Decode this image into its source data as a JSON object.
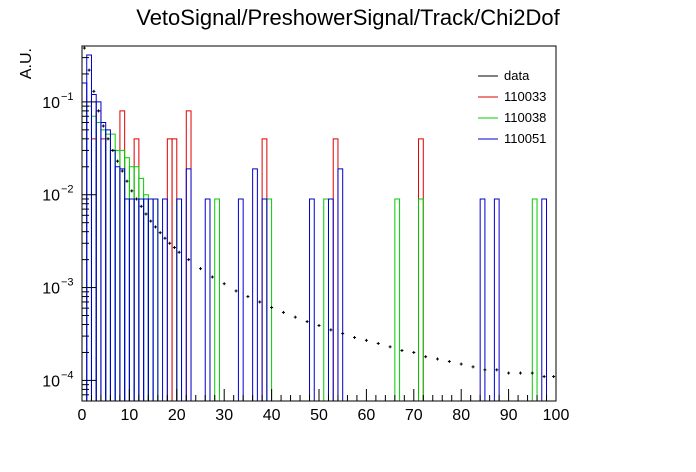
{
  "chart_data": {
    "type": "histogram",
    "title": "VetoSignal/PreshowerSignal/Track/Chi2Dof",
    "xlabel": "",
    "ylabel": "A.U.",
    "xlim": [
      0,
      100
    ],
    "ylim": [
      6e-05,
      0.4
    ],
    "y_scale": "log",
    "x_ticks": [
      "0",
      "10",
      "20",
      "30",
      "40",
      "50",
      "60",
      "70",
      "80",
      "90",
      "100"
    ],
    "y_ticks": [
      {
        "value": 0.0001,
        "label": "10",
        "exp": "−4"
      },
      {
        "value": 0.001,
        "label": "10",
        "exp": "−3"
      },
      {
        "value": 0.01,
        "label": "10",
        "exp": "−2"
      },
      {
        "value": 0.1,
        "label": "10",
        "exp": "−1"
      }
    ],
    "grid": false,
    "legend_position": "top-right",
    "bin_width": 1,
    "series": [
      {
        "name": "data",
        "color": "#000000",
        "style": "points",
        "description_decay": true,
        "x": [
          0.5,
          1.5,
          2.5,
          3.5,
          4.5,
          5.5,
          6.5,
          7.5,
          8.5,
          9.5,
          10.5,
          11.5,
          12.5,
          13.5,
          14.5,
          15.5,
          16.5,
          17.5,
          18.5,
          19.5,
          20.5,
          22.5,
          25,
          27.5,
          30,
          32.5,
          35,
          37.5,
          40,
          42.5,
          45,
          47.5,
          50,
          52.5,
          55,
          57.5,
          60,
          62.5,
          65,
          67.5,
          70,
          72.5,
          75,
          77.5,
          80,
          82.5,
          85,
          87.5,
          90,
          92.5,
          95,
          97.5,
          99.5
        ],
        "y": [
          0.38,
          0.22,
          0.13,
          0.08,
          0.055,
          0.04,
          0.03,
          0.023,
          0.018,
          0.014,
          0.011,
          0.009,
          0.0075,
          0.0062,
          0.0052,
          0.0045,
          0.0039,
          0.0034,
          0.003,
          0.0027,
          0.0024,
          0.002,
          0.0016,
          0.0013,
          0.0011,
          0.00092,
          0.0008,
          0.0007,
          0.00061,
          0.00054,
          0.00048,
          0.00043,
          0.00039,
          0.00035,
          0.00032,
          0.00029,
          0.00027,
          0.00025,
          0.00023,
          0.00021,
          0.0002,
          0.00018,
          0.00017,
          0.00016,
          0.00015,
          0.00014,
          0.00013,
          0.00013,
          0.00012,
          0.00012,
          0.00012,
          0.00011,
          0.00011
        ]
      },
      {
        "name": "110033",
        "color": "#dd0000",
        "style": "step",
        "bins": [
          {
            "x": 2,
            "y": 0.04
          },
          {
            "x": 3,
            "y": 0.08
          },
          {
            "x": 4,
            "y": 0.04
          },
          {
            "x": 8,
            "y": 0.08
          },
          {
            "x": 11,
            "y": 0.04
          },
          {
            "x": 18,
            "y": 0.04
          },
          {
            "x": 19,
            "y": 0.04
          },
          {
            "x": 22,
            "y": 0.08
          },
          {
            "x": 38,
            "y": 0.04
          },
          {
            "x": 53,
            "y": 0.04
          },
          {
            "x": 71,
            "y": 0.04
          }
        ]
      },
      {
        "name": "110038",
        "color": "#00cc00",
        "style": "step",
        "bins": [
          {
            "x": 1,
            "y": 0.09
          },
          {
            "x": 2,
            "y": 0.07
          },
          {
            "x": 3,
            "y": 0.06
          },
          {
            "x": 4,
            "y": 0.05
          },
          {
            "x": 5,
            "y": 0.045
          },
          {
            "x": 6,
            "y": 0.045
          },
          {
            "x": 7,
            "y": 0.03
          },
          {
            "x": 8,
            "y": 0.03
          },
          {
            "x": 9,
            "y": 0.025
          },
          {
            "x": 10,
            "y": 0.02
          },
          {
            "x": 11,
            "y": 0.02
          },
          {
            "x": 12,
            "y": 0.015
          },
          {
            "x": 13,
            "y": 0.01
          },
          {
            "x": 14,
            "y": 0.009
          },
          {
            "x": 15,
            "y": 0.009
          },
          {
            "x": 20,
            "y": 0.009
          },
          {
            "x": 28,
            "y": 0.009
          },
          {
            "x": 39,
            "y": 0.009
          },
          {
            "x": 51,
            "y": 0.009
          },
          {
            "x": 66,
            "y": 0.009
          },
          {
            "x": 71,
            "y": 0.009
          },
          {
            "x": 95,
            "y": 0.009
          }
        ]
      },
      {
        "name": "110051",
        "color": "#0000cc",
        "style": "step",
        "bins": [
          {
            "x": 0,
            "y": 0.16
          },
          {
            "x": 1,
            "y": 0.32
          },
          {
            "x": 2,
            "y": 0.12
          },
          {
            "x": 3,
            "y": 0.1
          },
          {
            "x": 4,
            "y": 0.06
          },
          {
            "x": 5,
            "y": 0.05
          },
          {
            "x": 6,
            "y": 0.03
          },
          {
            "x": 7,
            "y": 0.02
          },
          {
            "x": 8,
            "y": 0.019
          },
          {
            "x": 9,
            "y": 0.009
          },
          {
            "x": 10,
            "y": 0.009
          },
          {
            "x": 11,
            "y": 0.009
          },
          {
            "x": 12,
            "y": 0.009
          },
          {
            "x": 13,
            "y": 0.009
          },
          {
            "x": 14,
            "y": 0.009
          },
          {
            "x": 15,
            "y": 0.009
          },
          {
            "x": 17,
            "y": 0.009
          },
          {
            "x": 20,
            "y": 0.009
          },
          {
            "x": 22,
            "y": 0.019
          },
          {
            "x": 26,
            "y": 0.009
          },
          {
            "x": 33,
            "y": 0.009
          },
          {
            "x": 36,
            "y": 0.019
          },
          {
            "x": 38,
            "y": 0.009
          },
          {
            "x": 48,
            "y": 0.009
          },
          {
            "x": 52,
            "y": 0.009
          },
          {
            "x": 54,
            "y": 0.019
          },
          {
            "x": 84,
            "y": 0.009
          },
          {
            "x": 87,
            "y": 0.009
          },
          {
            "x": 97,
            "y": 0.009
          }
        ]
      }
    ]
  }
}
